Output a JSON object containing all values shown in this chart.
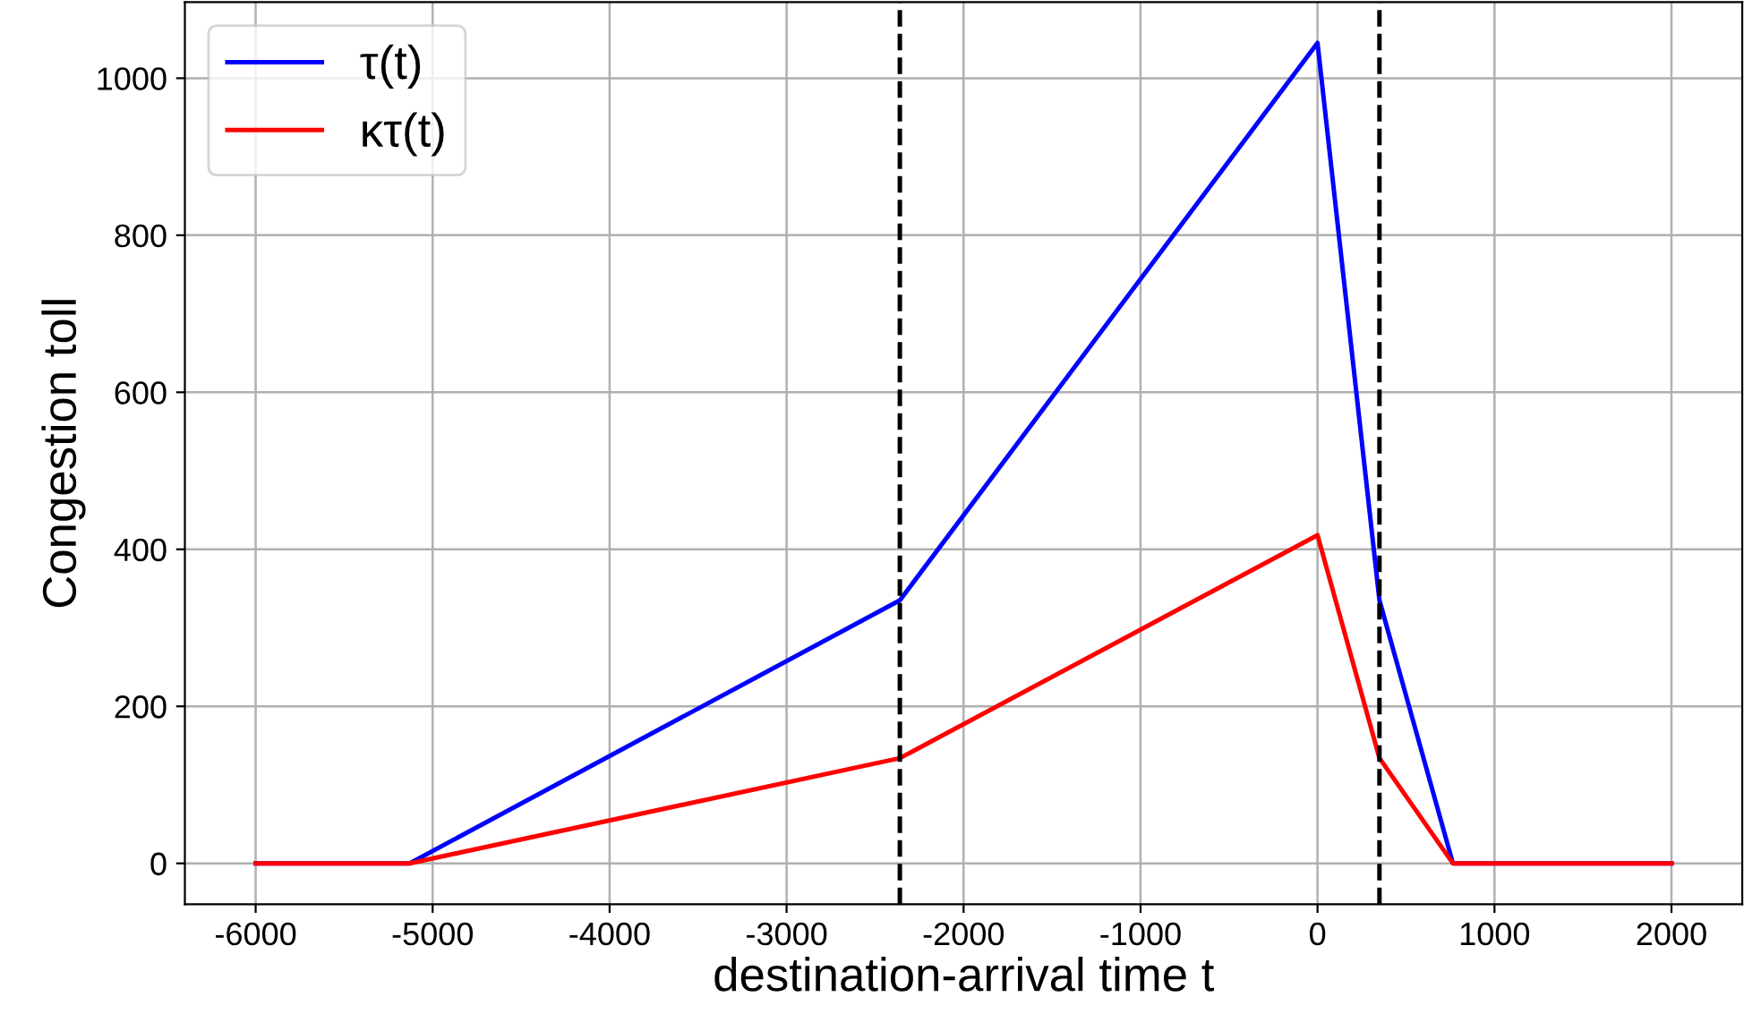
{
  "chart_data": {
    "type": "line",
    "xlabel": "destination-arrival time t",
    "ylabel": "Congestion toll",
    "series": [
      {
        "name": "τ(t)",
        "color": "#0000ff",
        "x": [
          -6000,
          -5130,
          -2360,
          0,
          350,
          765,
          2000
        ],
        "values": [
          0,
          0,
          335,
          1045,
          335,
          0,
          0
        ]
      },
      {
        "name": "κτ(t)",
        "color": "#ff0000",
        "x": [
          -6000,
          -5130,
          -2360,
          0,
          350,
          765,
          2000
        ],
        "values": [
          0,
          0,
          134,
          418,
          134,
          0,
          0
        ]
      }
    ],
    "ref_lines": [
      {
        "axis": "x",
        "value": -2360,
        "color": "#000000",
        "line_style": "dashed"
      },
      {
        "axis": "x",
        "value": 350,
        "color": "#000000",
        "line_style": "dashed"
      }
    ],
    "xlim": [
      -6400,
      2400
    ],
    "ylim": [
      -52,
      1097
    ],
    "xticks": [
      -6000,
      -5000,
      -4000,
      -3000,
      -2000,
      -1000,
      0,
      1000,
      2000
    ],
    "yticks": [
      0,
      200,
      400,
      600,
      800,
      1000
    ],
    "grid": true,
    "legend": "top left",
    "marker": "none",
    "line_style": "solid"
  }
}
